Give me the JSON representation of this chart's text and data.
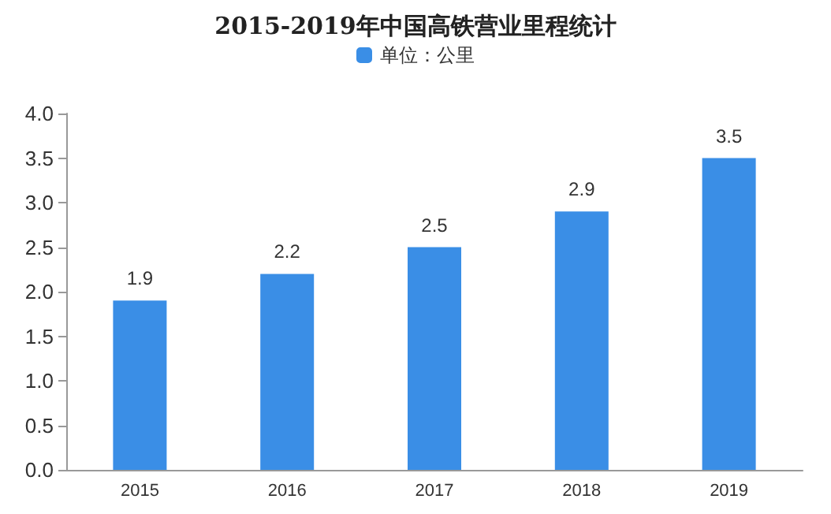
{
  "chart_data": {
    "type": "bar",
    "title": "2015-2019年中国高铁营业里程统计",
    "categories": [
      "2015",
      "2016",
      "2017",
      "2018",
      "2019"
    ],
    "series": [
      {
        "name": "单位：公里",
        "color": "#3a8ee6",
        "values": [
          1.9,
          2.2,
          2.5,
          2.9,
          3.5
        ]
      }
    ],
    "ylim": [
      0,
      4
    ],
    "yticks": [
      {
        "value": 0,
        "label": "0.0"
      },
      {
        "value": 0.5,
        "label": "0.5"
      },
      {
        "value": 1,
        "label": "1.0"
      },
      {
        "value": 1.5,
        "label": "1.5"
      },
      {
        "value": 2,
        "label": "2.0"
      },
      {
        "value": 2.5,
        "label": "2.5"
      },
      {
        "value": 3,
        "label": "3.0"
      },
      {
        "value": 3.5,
        "label": "3.5"
      },
      {
        "value": 4,
        "label": "4.0"
      }
    ],
    "data_labels": true,
    "legend": "top"
  }
}
